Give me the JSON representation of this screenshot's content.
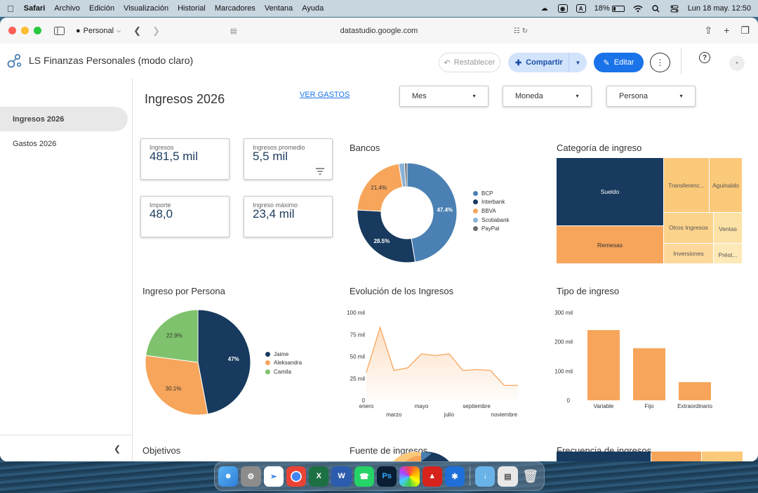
{
  "menubar": {
    "app": "Safari",
    "items": [
      "Archivo",
      "Edición",
      "Visualización",
      "Historial",
      "Marcadores",
      "Ventana",
      "Ayuda"
    ],
    "input_badge": "A",
    "battery": "18%",
    "datetime": "Lun 18 may.  12:50"
  },
  "browser": {
    "profile": "Personal",
    "url": "datastudio.google.com"
  },
  "header": {
    "title": "LS Finanzas Personales (modo claro)",
    "reset_label": "Restablecer",
    "share_label": "Compartir",
    "edit_label": "Editar"
  },
  "sidebar": {
    "items": [
      {
        "label": "Ingresos 2026",
        "active": true
      },
      {
        "label": "Gastos 2026",
        "active": false
      }
    ]
  },
  "page": {
    "title": "Ingresos 2026",
    "link": "VER GASTOS",
    "filters": [
      "Mes",
      "Moneda",
      "Persona"
    ]
  },
  "scorecards": [
    {
      "label": "Ingresos",
      "value": "481,5 mil"
    },
    {
      "label": "Ingresos promedio",
      "value": "5,5 mil"
    },
    {
      "label": "Importe",
      "value": "48,0"
    },
    {
      "label": "Ingreso máximo",
      "value": "23,4 mil"
    }
  ],
  "colors": {
    "navy": "#173a5e",
    "blue": "#4a80b3",
    "orange": "#f7a55b",
    "light_blue": "#8ab1d6",
    "gray": "#6b6b6b",
    "green": "#7fc26d",
    "light_orange": "#fbc97a",
    "accent": "#1a73e8"
  },
  "chart_data": [
    {
      "type": "pie",
      "title": "Bancos",
      "donut": true,
      "labels": [
        "BCP",
        "Interbank",
        "BBVA",
        "Scotiabank",
        "PayPal"
      ],
      "values": [
        47.4,
        28.5,
        21.4,
        1.9,
        0.8
      ],
      "slice_labels": [
        "47.4%",
        "28.5%",
        "21.4%",
        "",
        ""
      ],
      "legend": "right"
    },
    {
      "type": "heatmap",
      "subtype": "treemap",
      "title": "Categoría de ingreso",
      "labels": [
        "Sueldo",
        "Remesas",
        "Transferenc...",
        "Aguinaldo",
        "Otros Ingresos",
        "Ventas",
        "Inversiones",
        "Prést..."
      ]
    },
    {
      "type": "pie",
      "title": "Ingreso por Persona",
      "labels": [
        "Jaime",
        "Aleksandra",
        "Camila"
      ],
      "values": [
        47.0,
        30.1,
        22.9
      ],
      "slice_labels": [
        "47%",
        "30.1%",
        "22.9%"
      ],
      "legend": "right"
    },
    {
      "type": "area",
      "title": "Evolución de los Ingresos",
      "x": [
        "enero",
        "febrero",
        "marzo",
        "abril",
        "mayo",
        "junio",
        "julio",
        "agosto",
        "septiembre",
        "octubre",
        "noviembre",
        "diciembre"
      ],
      "x_tick_labels_top": [
        "enero",
        "mayo",
        "septiembre"
      ],
      "x_tick_labels_bottom": [
        "marzo",
        "julio",
        "noviembre"
      ],
      "values": [
        32000,
        83000,
        34000,
        37000,
        53000,
        51000,
        53000,
        34000,
        35000,
        34000,
        17000,
        17000
      ],
      "y_ticks": [
        "0",
        "25 mil",
        "50 mil",
        "75 mil",
        "100 mil"
      ],
      "ylim": [
        0,
        100000
      ]
    },
    {
      "type": "bar",
      "title": "Tipo de ingreso",
      "categories": [
        "Variable",
        "Fijo",
        "Extraordinario"
      ],
      "values": [
        240000,
        178000,
        62000
      ],
      "y_ticks": [
        "0",
        "100 mil",
        "200 mil",
        "300 mil"
      ],
      "ylim": [
        0,
        300000
      ]
    }
  ],
  "lower_titles": [
    "Objetivos",
    "Fuente de ingresos",
    "Frecuencia de ingresos"
  ]
}
